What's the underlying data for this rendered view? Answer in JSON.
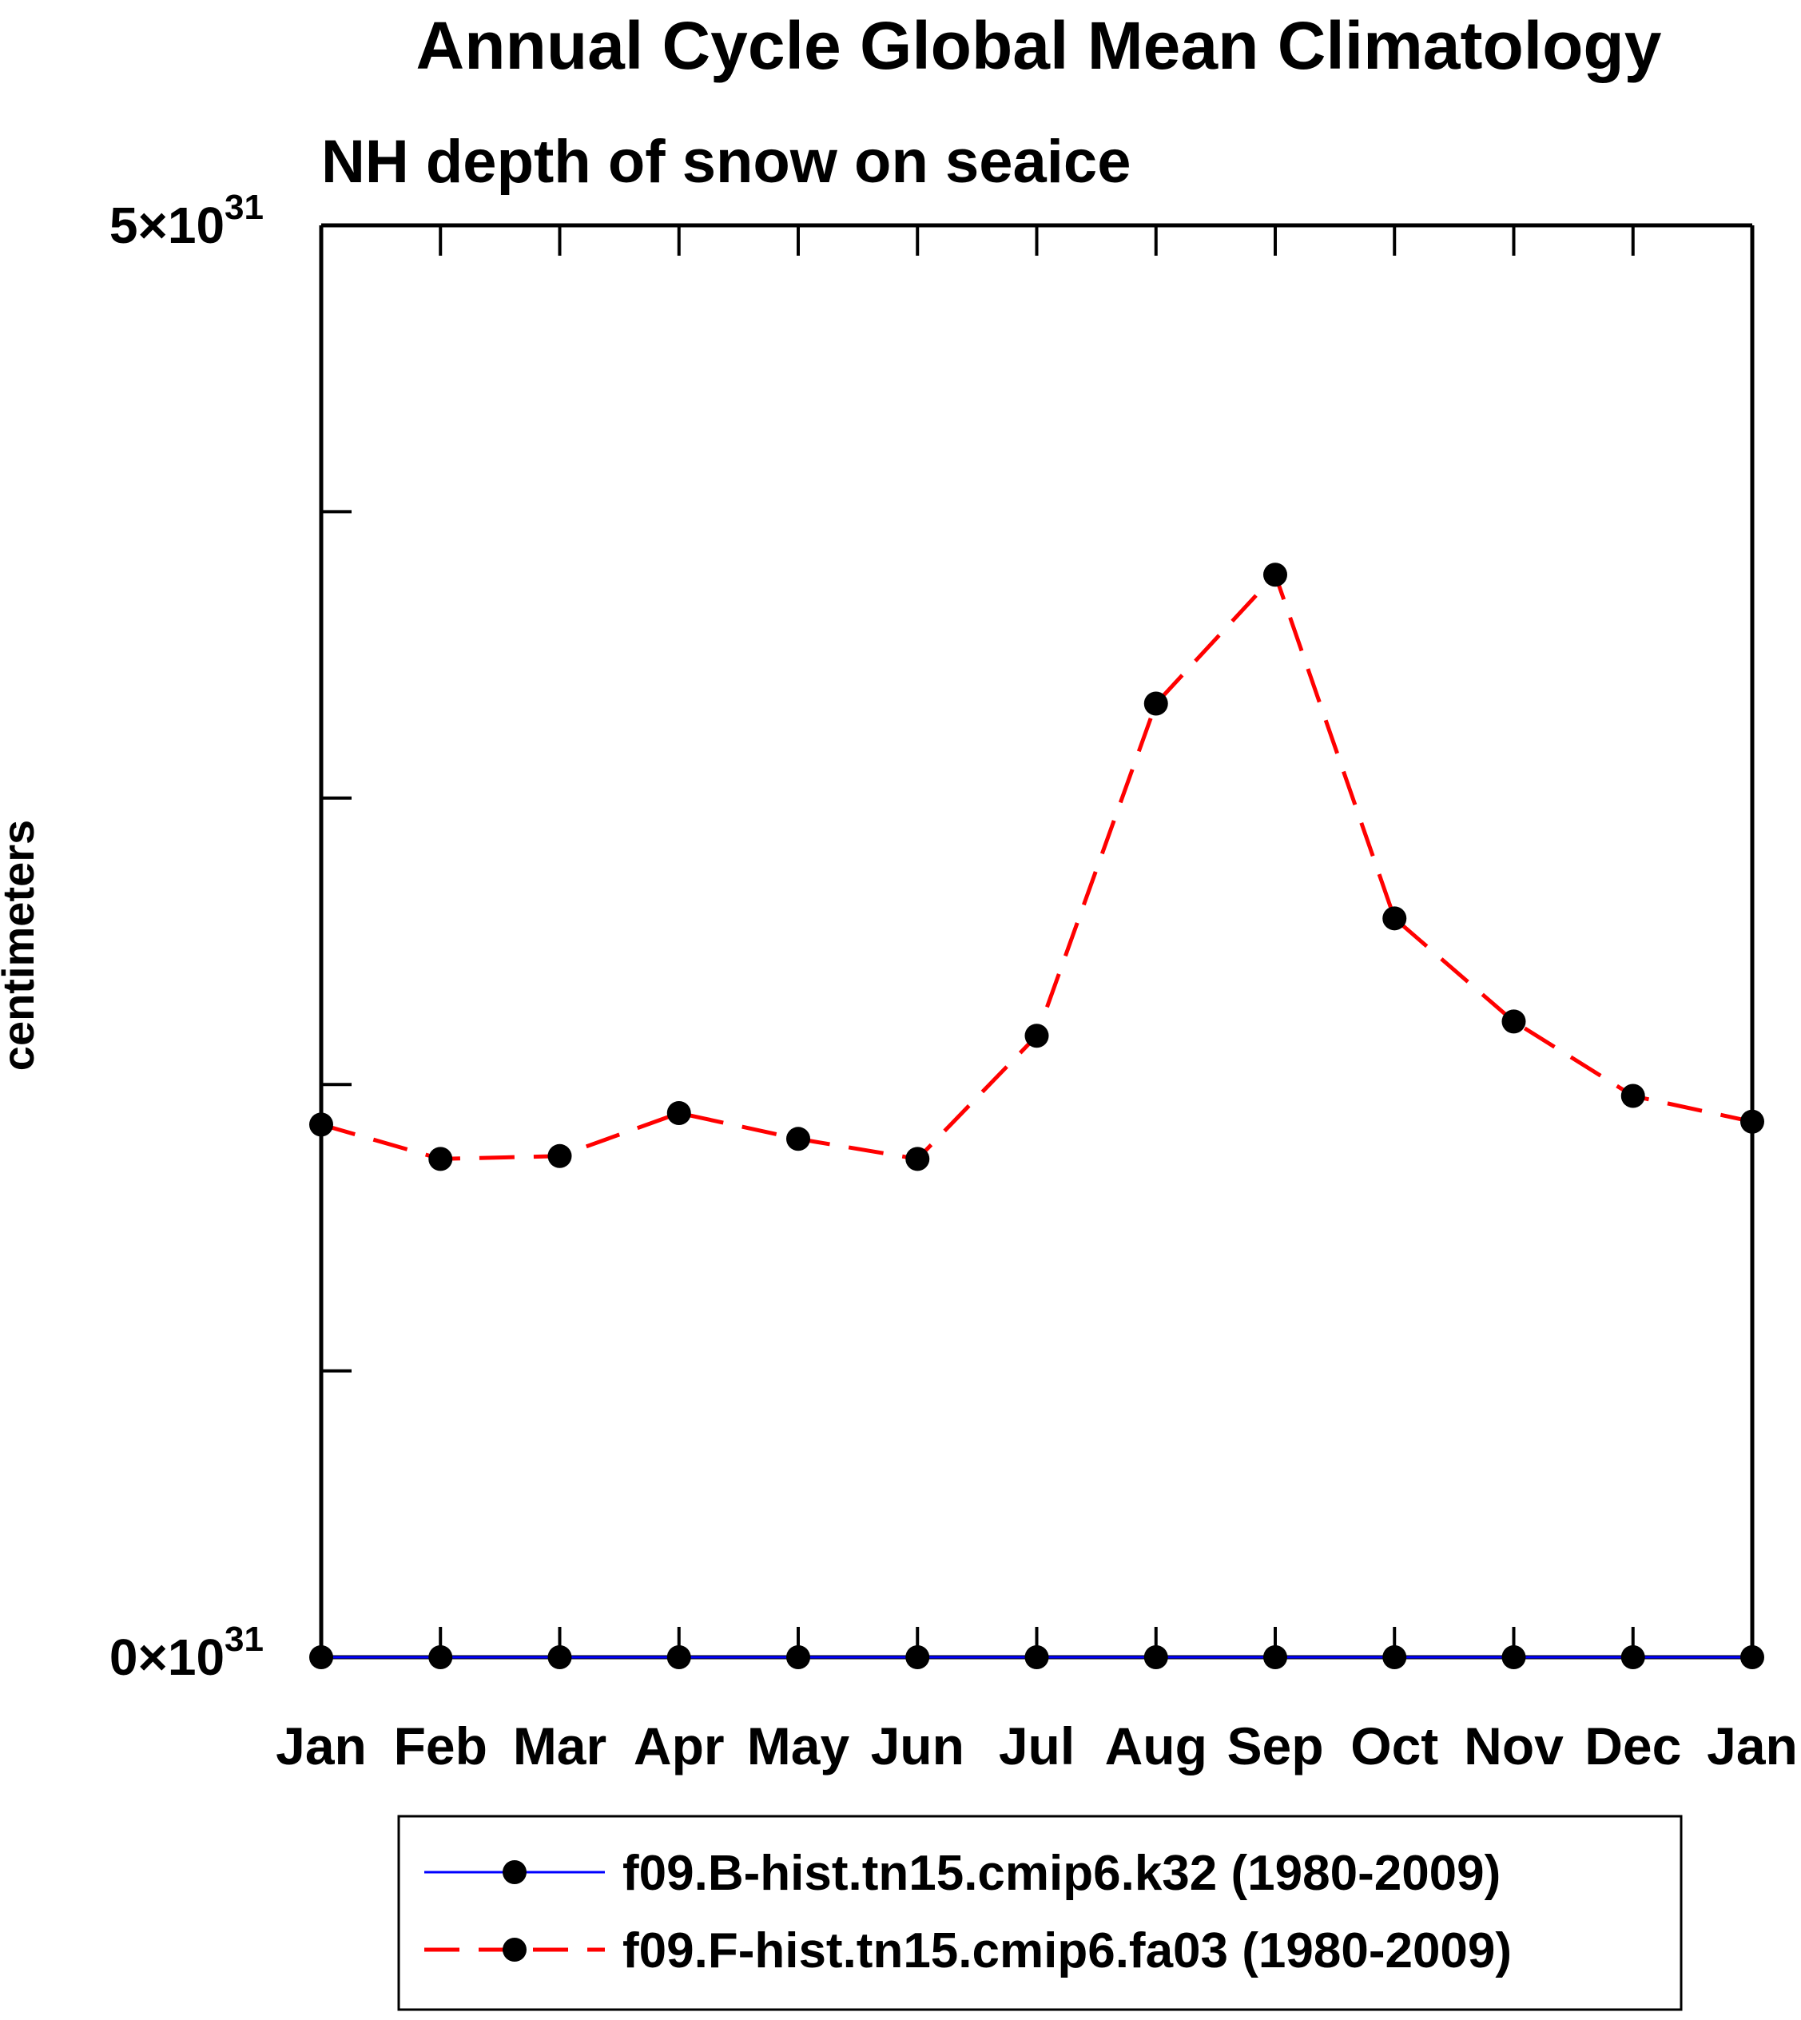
{
  "chart_data": {
    "type": "line",
    "title": "Annual Cycle Global Mean Climatology",
    "subtitle": "NH depth of snow on seaice",
    "ylabel": "centimeters",
    "x_tick_labels": [
      "Jan",
      "Feb",
      "Mar",
      "Apr",
      "May",
      "Jun",
      "Jul",
      "Aug",
      "Sep",
      "Oct",
      "Nov",
      "Dec",
      "Jan"
    ],
    "y_axis": {
      "min": 0,
      "max": 5,
      "tick_step": 1,
      "scale_exponent": "31",
      "labels": [
        {
          "value": 0,
          "base": "0×10",
          "exp": "31"
        },
        {
          "value": 5,
          "base": "5×10",
          "exp": "31"
        }
      ]
    },
    "grid": false,
    "legend_position": "bottom",
    "value_scale": "1e31",
    "series": [
      {
        "name": "f09.B-hist.tn15.cmip6.k32 (1980-2009)",
        "line_color": "#0000ff",
        "line_style": "solid",
        "marker": "circle",
        "marker_color": "#000000",
        "values": [
          0,
          0,
          0,
          0,
          0,
          0,
          0,
          0,
          0,
          0,
          0,
          0,
          0
        ]
      },
      {
        "name": "f09.F-hist.tn15.cmip6.fa03 (1980-2009)",
        "line_color": "#ff0000",
        "line_style": "dashed",
        "marker": "circle",
        "marker_color": "#000000",
        "values": [
          1.86,
          1.74,
          1.75,
          1.9,
          1.81,
          1.74,
          2.17,
          3.33,
          3.78,
          2.58,
          2.22,
          1.96,
          1.87
        ]
      }
    ]
  },
  "colors": {
    "axis": "#000000",
    "series_b_hist": "#0000ff",
    "series_f_hist": "#ff0000",
    "marker": "#000000",
    "background": "#ffffff"
  }
}
